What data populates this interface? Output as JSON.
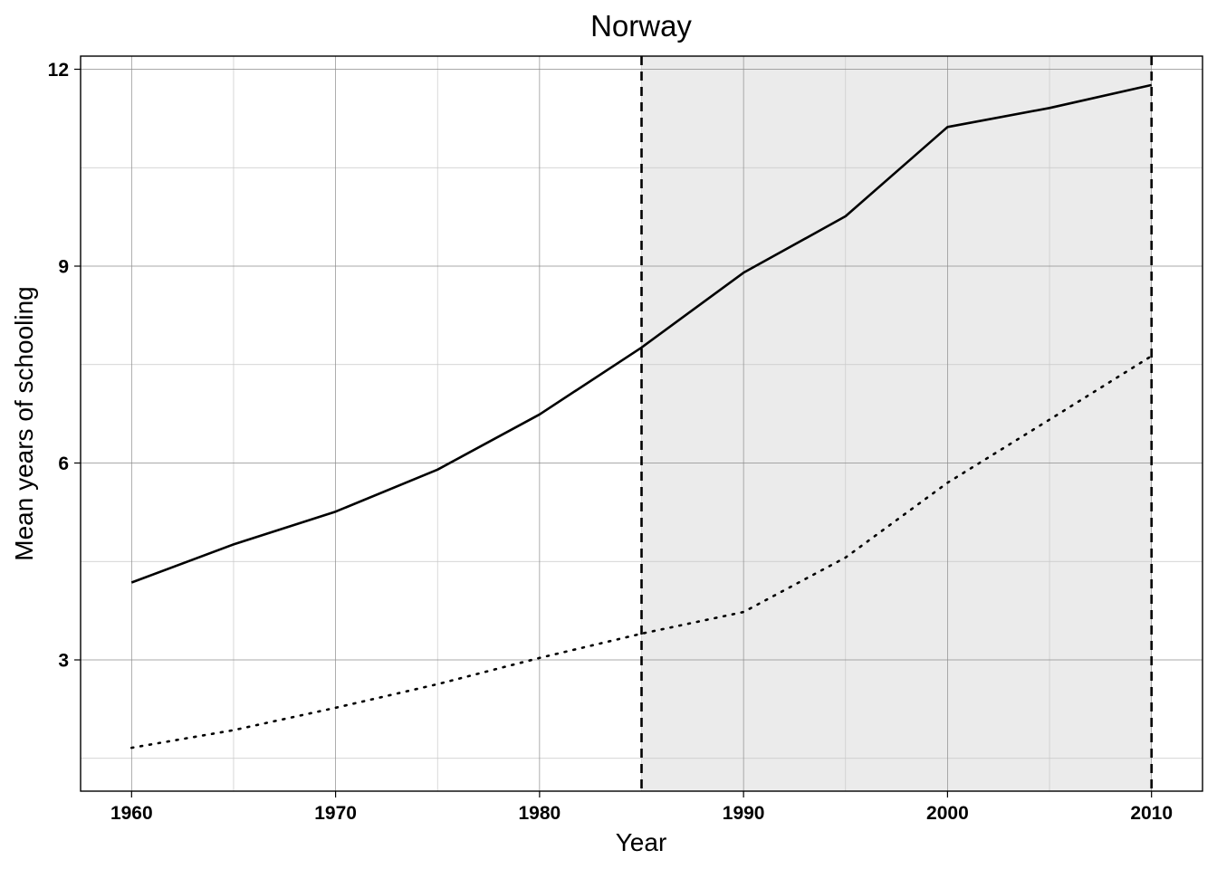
{
  "chart_data": {
    "type": "line",
    "title": "Norway",
    "xlabel": "Year",
    "ylabel": "Mean years of schooling",
    "xlim": [
      1957.5,
      2012.5
    ],
    "ylim": [
      1.0,
      12.2
    ],
    "x_ticks": [
      1960,
      1970,
      1980,
      1990,
      2000,
      2010
    ],
    "x_tick_labels": [
      "1960",
      "1970",
      "1980",
      "1990",
      "2000",
      "2010"
    ],
    "x_minor_ticks": [
      1965,
      1975,
      1985,
      1995,
      2005
    ],
    "y_ticks": [
      3,
      6,
      9,
      12
    ],
    "y_tick_labels": [
      "3",
      "6",
      "9",
      "12"
    ],
    "y_minor_ticks": [
      1.5,
      4.5,
      7.5,
      10.5
    ],
    "grid": true,
    "shaded_region": {
      "x": [
        1985,
        2010
      ],
      "color": "#ebebeb"
    },
    "vertical_lines": [
      {
        "x": 1985,
        "style": "dashed"
      },
      {
        "x": 2010,
        "style": "dashed"
      }
    ],
    "x": [
      1960,
      1965,
      1970,
      1975,
      1980,
      1985,
      1990,
      1995,
      2000,
      2005,
      2010
    ],
    "series": [
      {
        "style": "solid",
        "color": "#000000",
        "values": [
          4.18,
          4.76,
          5.26,
          5.9,
          6.74,
          7.76,
          8.9,
          9.76,
          11.12,
          11.41,
          11.76
        ]
      },
      {
        "style": "dotted",
        "color": "#000000",
        "values": [
          1.66,
          1.93,
          2.27,
          2.63,
          3.03,
          3.4,
          3.73,
          4.56,
          5.7,
          6.66,
          7.63
        ]
      }
    ]
  }
}
